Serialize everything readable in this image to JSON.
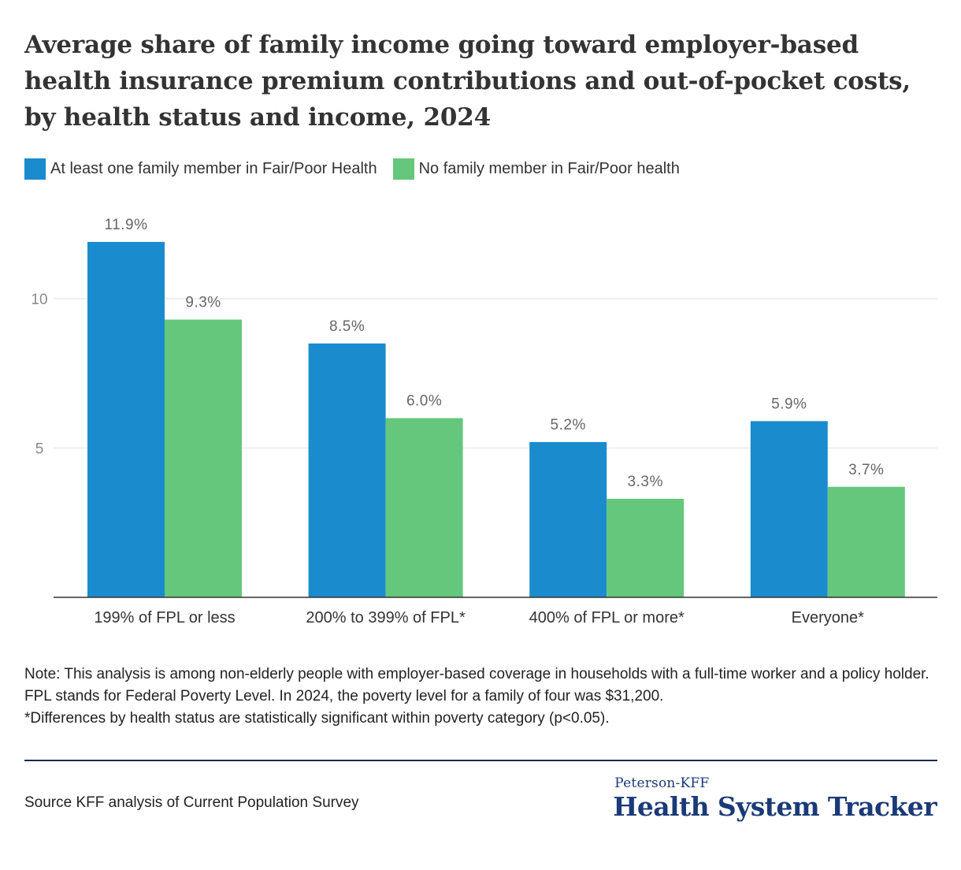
{
  "title": "Average share of family income going toward employer-based health insurance premium contributions and out-of-pocket costs, by health status and income, 2024",
  "legend": [
    {
      "label": "At least one family member in Fair/Poor Health",
      "color": "#1a8ccd"
    },
    {
      "label": "No family member in Fair/Poor health",
      "color": "#64c77b"
    }
  ],
  "chart_data": {
    "type": "bar",
    "categories": [
      "199% of FPL or less",
      "200% to 399% of FPL*",
      "400% of FPL or more*",
      "Everyone*"
    ],
    "series": [
      {
        "name": "At least one family member in Fair/Poor Health",
        "values": [
          11.9,
          8.5,
          5.2,
          5.9
        ],
        "labels": [
          "11.9%",
          "8.5%",
          "5.2%",
          "5.9%"
        ],
        "color": "#1a8ccd"
      },
      {
        "name": "No family member in Fair/Poor health",
        "values": [
          9.3,
          6.0,
          3.3,
          3.7
        ],
        "labels": [
          "9.3%",
          "6.0%",
          "3.3%",
          "3.7%"
        ],
        "color": "#64c77b"
      }
    ],
    "yticks": [
      5,
      10
    ],
    "ylim": [
      0,
      12
    ],
    "grid": true,
    "legend_position": "top-left"
  },
  "note": {
    "line1": "Note: This analysis is among non-elderly people with employer-based coverage in households with a full-time worker and a policy holder. FPL stands for Federal Poverty Level. In 2024, the poverty level for a family of four was $31,200.",
    "line2": "*Differences by health status are statistically significant within poverty category (p<0.05)."
  },
  "source": "Source KFF analysis of Current Population Survey",
  "brand": {
    "small": "Peterson-KFF",
    "big": "Health System Tracker"
  }
}
